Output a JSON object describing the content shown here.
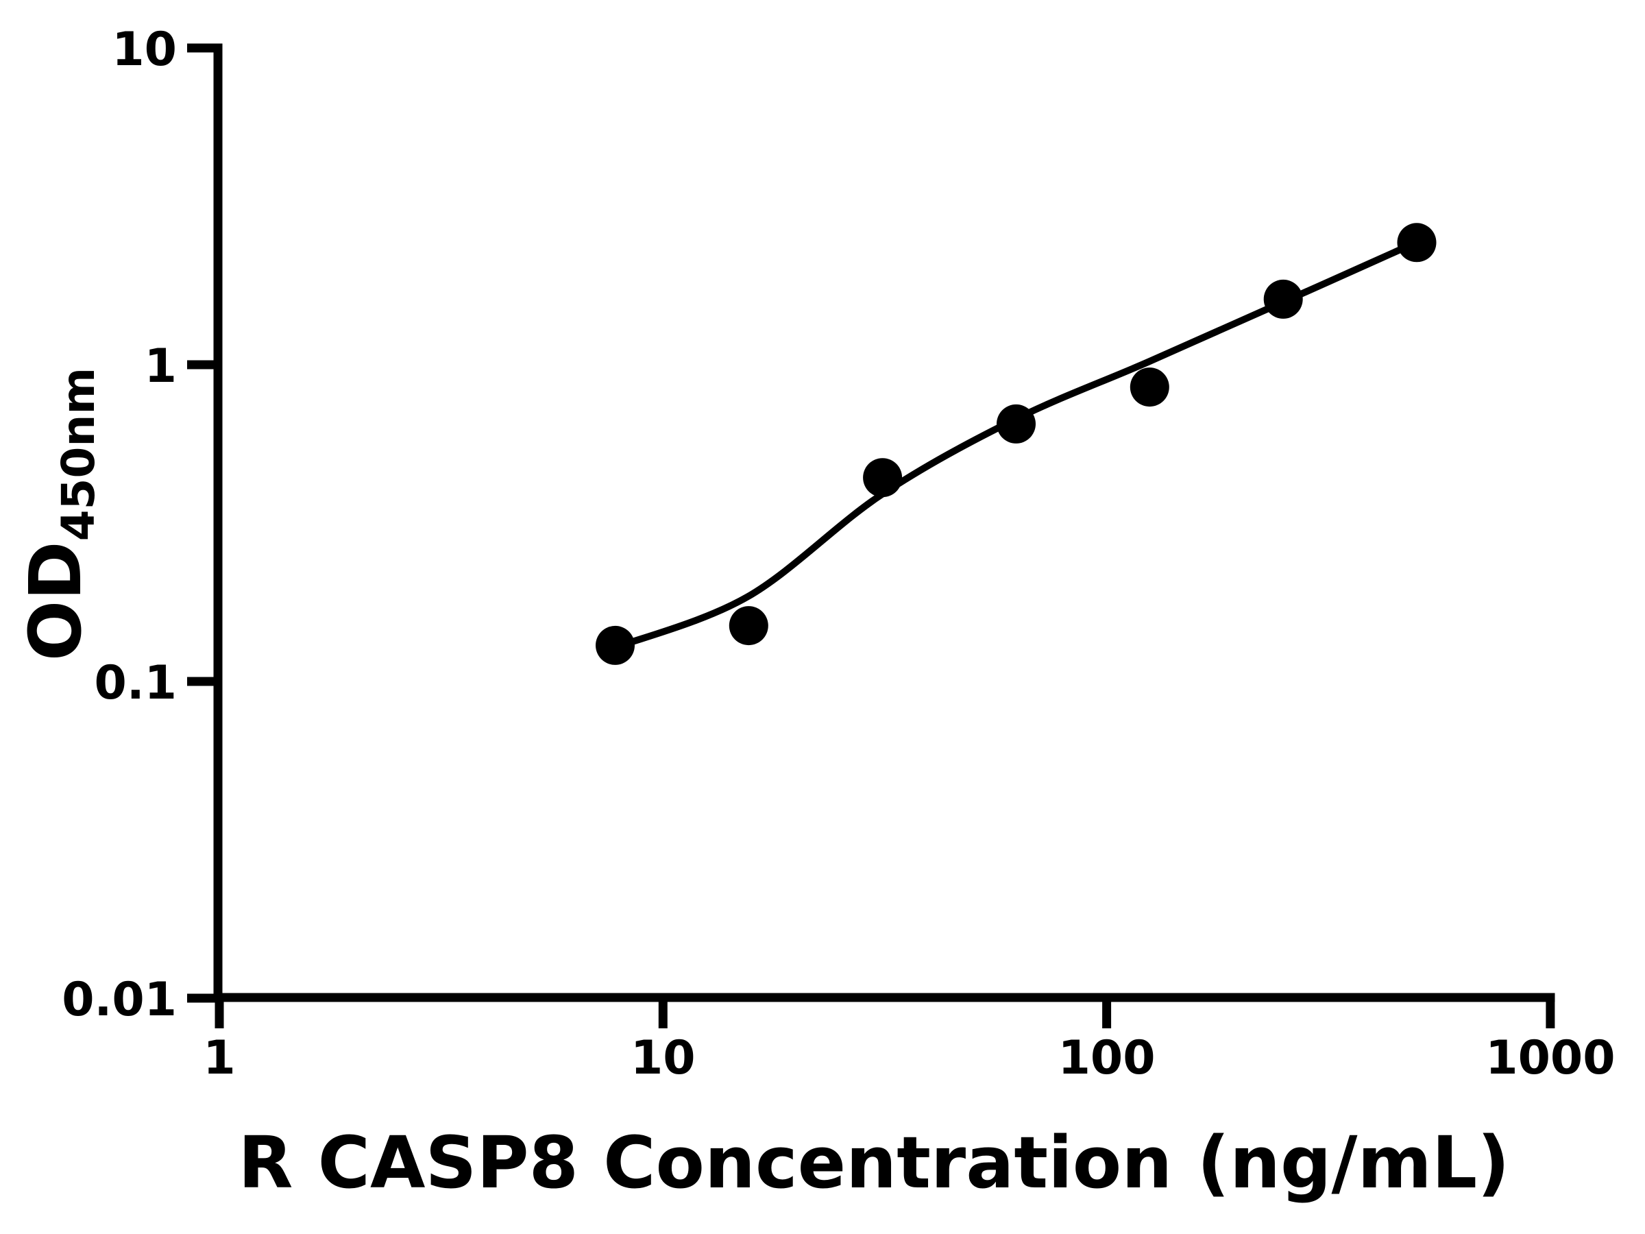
{
  "chart_data": {
    "type": "scatter",
    "title": "",
    "xlabel": "R CASP8 Concentration (ng/mL)",
    "ylabel": "OD",
    "ylabel_subscript": "450nm",
    "x_scale": "log",
    "y_scale": "log",
    "xlim": [
      1,
      1000
    ],
    "ylim": [
      0.01,
      10
    ],
    "grid": false,
    "legend": "none",
    "background_color": "#ffffff",
    "marker_color": "#000000",
    "line_color": "#000000",
    "axis_color": "#000000",
    "x_ticks": [
      {
        "value": 1,
        "label": "1"
      },
      {
        "value": 10,
        "label": "10"
      },
      {
        "value": 100,
        "label": "100"
      },
      {
        "value": 1000,
        "label": "1000"
      }
    ],
    "y_ticks": [
      {
        "value": 10,
        "label": "10"
      },
      {
        "value": 1,
        "label": "1"
      },
      {
        "value": 0.1,
        "label": "0.1"
      },
      {
        "value": 0.01,
        "label": "0.01"
      }
    ],
    "series": [
      {
        "name": "standard-curve-points",
        "type": "scatter",
        "marker": "filled-circle",
        "x": [
          7.8,
          15.6,
          31.25,
          62.5,
          125,
          250,
          500
        ],
        "y": [
          0.13,
          0.15,
          0.44,
          0.65,
          0.85,
          1.61,
          2.43
        ]
      }
    ],
    "fit_curve": {
      "name": "fitted-standard-curve",
      "x": [
        7.8,
        15.5,
        31.0,
        62.0,
        124.0,
        248.0,
        498.0
      ],
      "y": [
        0.128,
        0.185,
        0.388,
        0.671,
        1.02,
        1.57,
        2.43
      ]
    }
  }
}
